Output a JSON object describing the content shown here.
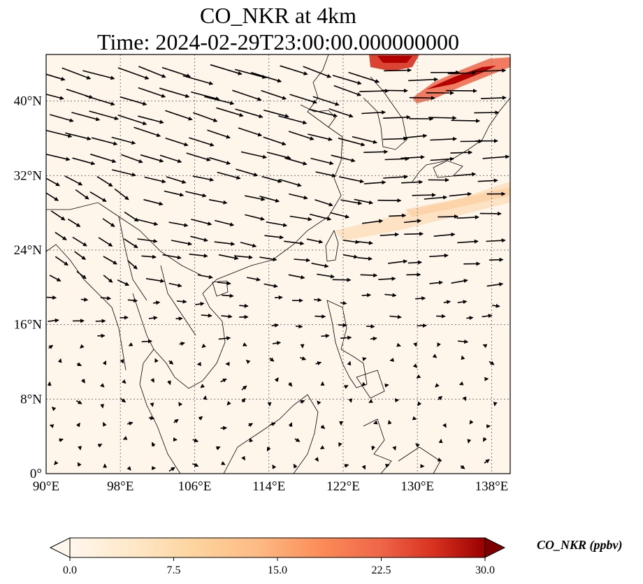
{
  "title": {
    "line1": "CO_NKR at 4km",
    "line2": "Time: 2024-02-29T23:00:00.000000000"
  },
  "map": {
    "projection": "PlateCarree",
    "lon_range": [
      90,
      140
    ],
    "lat_range": [
      0,
      45
    ],
    "grid": "dotted",
    "lon_ticks": [
      {
        "value": 90,
        "label": "90°E"
      },
      {
        "value": 98,
        "label": "98°E"
      },
      {
        "value": 106,
        "label": "106°E"
      },
      {
        "value": 114,
        "label": "114°E"
      },
      {
        "value": 122,
        "label": "122°E"
      },
      {
        "value": 130,
        "label": "130°E"
      },
      {
        "value": 138,
        "label": "138°E"
      }
    ],
    "lat_ticks": [
      {
        "value": 0,
        "label": "0°"
      },
      {
        "value": 8,
        "label": "8°N"
      },
      {
        "value": 16,
        "label": "16°N"
      },
      {
        "value": 24,
        "label": "24°N"
      },
      {
        "value": 32,
        "label": "32°N"
      },
      {
        "value": 40,
        "label": "40°N"
      }
    ],
    "wind_vectors": "black arrows, predominantly westerly to north-westerly flow north of 20°N, weak variable winds in the tropics",
    "plume": "high CO concentrations near northeast China / Korea (~42-45°N, 125-135°E) and weak plume eastward of Taiwan"
  },
  "colorbar": {
    "label": "CO_NKR (ppbv)",
    "colormap": "OrRd",
    "min": 0.0,
    "max": 30.0,
    "extend": "both",
    "ticks": [
      "0.0",
      "7.5",
      "15.0",
      "22.5",
      "30.0"
    ]
  }
}
